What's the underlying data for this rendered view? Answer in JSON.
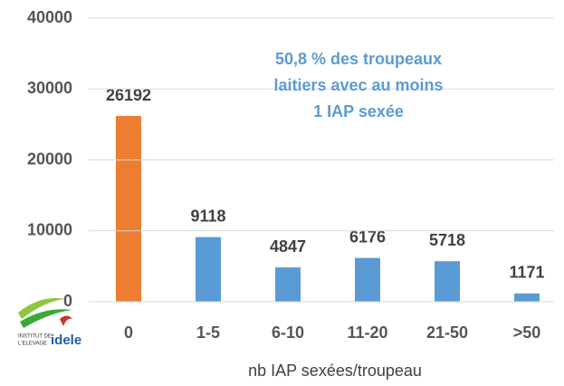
{
  "chart_data": {
    "type": "bar",
    "categories": [
      "0",
      "1-5",
      "6-10",
      "11-20",
      "21-50",
      ">50"
    ],
    "values": [
      26192,
      9118,
      4847,
      6176,
      5718,
      1171
    ],
    "colors": [
      "#ed7d31",
      "#5b9bd5",
      "#5b9bd5",
      "#5b9bd5",
      "#5b9bd5",
      "#5b9bd5"
    ],
    "ylim": [
      0,
      40000
    ],
    "yticks": [
      0,
      10000,
      20000,
      30000,
      40000
    ],
    "grid": true,
    "xlabel": "nb IAP sexées/troupeau",
    "annotation": [
      "50,8 % des troupeaux",
      "laitiers avec au moins",
      "1 IAP sexée"
    ]
  },
  "logo": {
    "line1": "INSTITUT DE",
    "line2": "L'ELEVAGE",
    "brand": "idele"
  }
}
